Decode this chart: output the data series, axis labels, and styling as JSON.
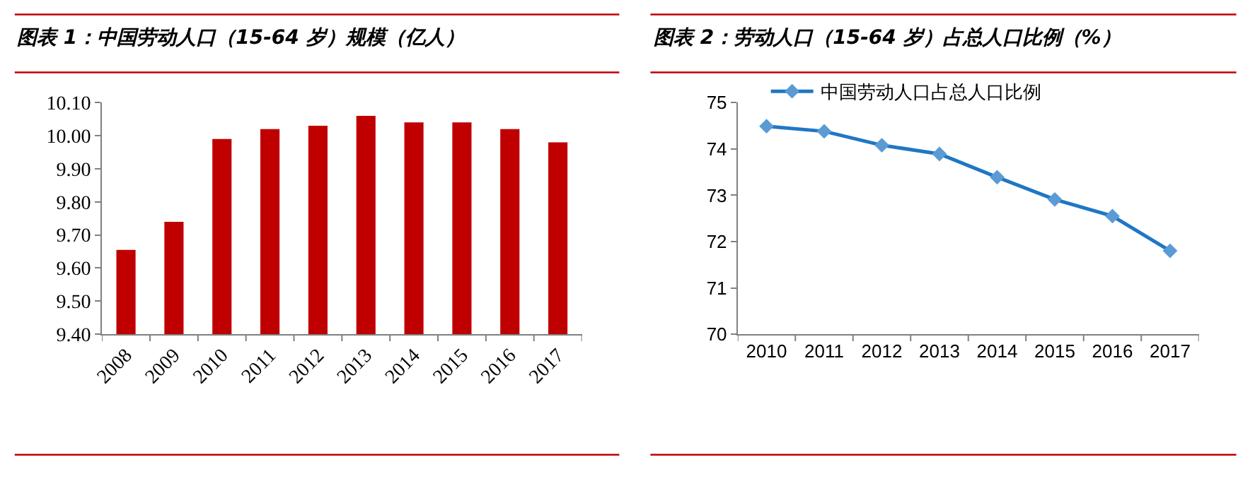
{
  "chart_data": [
    {
      "type": "bar",
      "title": "图表 1：中国劳动人口（15-64 岁）规模（亿人）",
      "categories": [
        "2008",
        "2009",
        "2010",
        "2011",
        "2012",
        "2013",
        "2014",
        "2015",
        "2016",
        "2017"
      ],
      "series": [
        {
          "color": "#c00000",
          "values": [
            9.655,
            9.74,
            9.99,
            10.02,
            10.03,
            10.06,
            10.04,
            10.04,
            10.02,
            9.98
          ]
        }
      ],
      "ylim": [
        9.4,
        10.1
      ],
      "yticks": [
        {
          "value": 9.4,
          "label": "9.40"
        },
        {
          "value": 9.5,
          "label": "9.50"
        },
        {
          "value": 9.6,
          "label": "9.60"
        },
        {
          "value": 9.7,
          "label": "9.70"
        },
        {
          "value": 9.8,
          "label": "9.80"
        },
        {
          "value": 9.9,
          "label": "9.90"
        },
        {
          "value": 10.0,
          "label": "10.00"
        },
        {
          "value": 10.1,
          "label": "10.10"
        }
      ],
      "grid": false,
      "legend": false
    },
    {
      "type": "line",
      "title": "图表 2：劳动人口（15-64 岁）占总人口比例（%）",
      "categories": [
        "2010",
        "2011",
        "2012",
        "2013",
        "2014",
        "2015",
        "2016",
        "2017"
      ],
      "series": [
        {
          "name": "中国劳动人口占总人口比例",
          "color": "#1f77c4",
          "values": [
            74.49,
            74.38,
            74.08,
            73.89,
            73.39,
            72.91,
            72.55,
            71.8
          ]
        }
      ],
      "ylim": [
        70,
        75
      ],
      "yticks": [
        70,
        71,
        72,
        73,
        74,
        75
      ],
      "grid": false,
      "legend": "top",
      "marker": "diamond",
      "line_style": "solid"
    }
  ]
}
